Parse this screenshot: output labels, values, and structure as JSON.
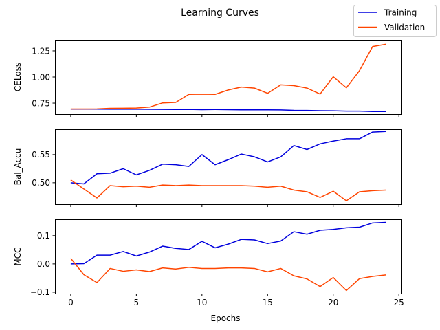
{
  "chart_data": {
    "type": "line",
    "title": "Learning Curves",
    "xlabel": "Epochs",
    "x": [
      0,
      1,
      2,
      3,
      4,
      5,
      6,
      7,
      8,
      9,
      10,
      11,
      12,
      13,
      14,
      15,
      16,
      17,
      18,
      19,
      20,
      21,
      22,
      23,
      24
    ],
    "xlim": [
      -1.2,
      25.2
    ],
    "xticks": [
      0,
      5,
      10,
      15,
      20,
      25
    ],
    "legend": {
      "position": "top-right",
      "entries": [
        {
          "name": "Training",
          "color": "#0000dd"
        },
        {
          "name": "Validation",
          "color": "#ff4500"
        }
      ]
    },
    "panels": [
      {
        "ylabel": "CELoss",
        "ylim": [
          0.645,
          1.355
        ],
        "yticks": [
          0.75,
          1.0,
          1.25
        ],
        "ytick_labels": [
          "0.75",
          "1.00",
          "1.25"
        ],
        "series": [
          {
            "name": "Training",
            "color": "#0000dd",
            "values": [
              0.693,
              0.693,
              0.693,
              0.692,
              0.692,
              0.692,
              0.691,
              0.69,
              0.689,
              0.69,
              0.688,
              0.689,
              0.688,
              0.686,
              0.686,
              0.686,
              0.685,
              0.681,
              0.68,
              0.678,
              0.677,
              0.674,
              0.674,
              0.67,
              0.67
            ]
          },
          {
            "name": "Validation",
            "color": "#ff4500",
            "values": [
              0.694,
              0.694,
              0.695,
              0.701,
              0.702,
              0.703,
              0.712,
              0.752,
              0.757,
              0.834,
              0.836,
              0.834,
              0.876,
              0.904,
              0.894,
              0.844,
              0.925,
              0.918,
              0.894,
              0.837,
              1.003,
              0.897,
              1.061,
              1.292,
              1.313
            ]
          }
        ]
      },
      {
        "ylabel": "Bal_Accu",
        "ylim": [
          0.462,
          0.595
        ],
        "yticks": [
          0.5,
          0.55
        ],
        "ytick_labels": [
          "0.50",
          "0.55"
        ],
        "series": [
          {
            "name": "Training",
            "color": "#0000dd",
            "values": [
              0.5,
              0.498,
              0.516,
              0.517,
              0.525,
              0.514,
              0.522,
              0.533,
              0.532,
              0.529,
              0.55,
              0.532,
              0.541,
              0.551,
              0.546,
              0.537,
              0.546,
              0.566,
              0.559,
              0.569,
              0.574,
              0.578,
              0.578,
              0.59,
              0.591
            ]
          },
          {
            "name": "Validation",
            "color": "#ff4500",
            "values": [
              0.505,
              0.489,
              0.473,
              0.495,
              0.493,
              0.494,
              0.492,
              0.496,
              0.495,
              0.496,
              0.495,
              0.495,
              0.495,
              0.495,
              0.494,
              0.492,
              0.494,
              0.487,
              0.484,
              0.474,
              0.485,
              0.468,
              0.484,
              0.486,
              0.487
            ]
          }
        ]
      },
      {
        "ylabel": "MCC",
        "ylim": [
          -0.105,
          0.158
        ],
        "yticks": [
          -0.1,
          0.0,
          0.1
        ],
        "ytick_labels": [
          "−0.1",
          "0.0",
          "0.1"
        ],
        "series": [
          {
            "name": "Training",
            "color": "#0000dd",
            "values": [
              0.0,
              0.001,
              0.031,
              0.031,
              0.044,
              0.028,
              0.042,
              0.063,
              0.055,
              0.051,
              0.08,
              0.057,
              0.07,
              0.087,
              0.085,
              0.072,
              0.081,
              0.114,
              0.105,
              0.119,
              0.122,
              0.128,
              0.13,
              0.145,
              0.147
            ]
          },
          {
            "name": "Validation",
            "color": "#ff4500",
            "values": [
              0.02,
              -0.038,
              -0.066,
              -0.016,
              -0.026,
              -0.021,
              -0.027,
              -0.014,
              -0.018,
              -0.012,
              -0.016,
              -0.016,
              -0.014,
              -0.014,
              -0.016,
              -0.028,
              -0.016,
              -0.042,
              -0.053,
              -0.08,
              -0.048,
              -0.094,
              -0.052,
              -0.044,
              -0.039
            ]
          }
        ]
      }
    ]
  }
}
